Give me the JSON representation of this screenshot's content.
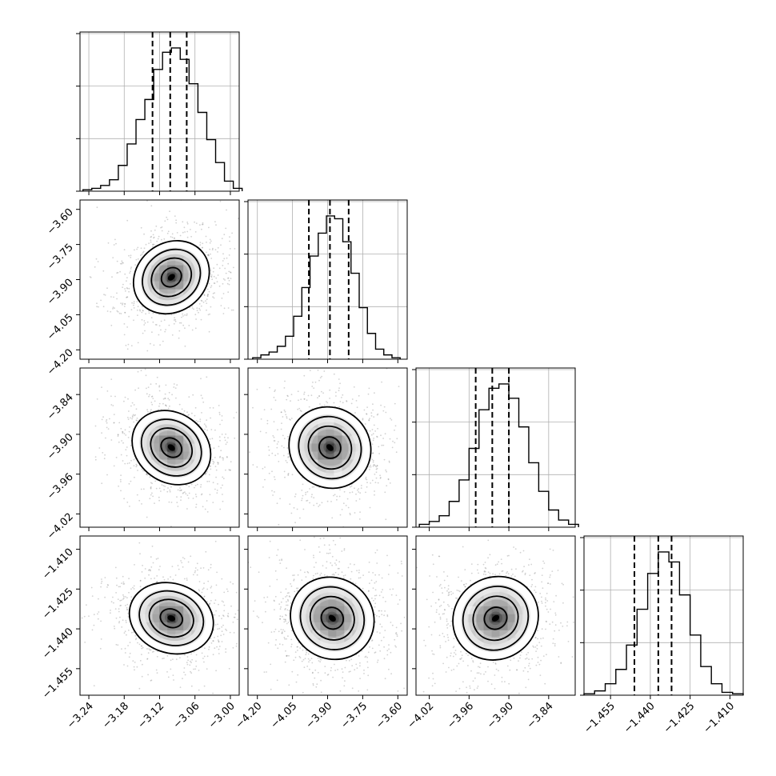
{
  "chart_data": {
    "type": "corner",
    "parameters": [
      {
        "ticks": [
          -3.24,
          -3.18,
          -3.12,
          -3.06,
          -3.0
        ],
        "tick_labels": [
          "−3.24",
          "−3.18",
          "−3.12",
          "−3.06",
          "−3.00"
        ],
        "range": [
          -3.255,
          -2.985
        ],
        "quantiles": [
          -3.132,
          -3.102,
          -3.074
        ],
        "hist_bins": [
          -3.25,
          -3.235,
          -3.22,
          -3.205,
          -3.19,
          -3.175,
          -3.16,
          -3.145,
          -3.13,
          -3.115,
          -3.1,
          -3.085,
          -3.07,
          -3.055,
          -3.04,
          -3.025,
          -3.01,
          -2.995
        ],
        "hist_counts": [
          0.01,
          0.02,
          0.04,
          0.08,
          0.18,
          0.33,
          0.5,
          0.64,
          0.85,
          0.97,
          1.0,
          0.92,
          0.75,
          0.55,
          0.36,
          0.2,
          0.07,
          0.02
        ]
      },
      {
        "ticks": [
          -4.2,
          -4.05,
          -3.9,
          -3.75,
          -3.6
        ],
        "tick_labels": [
          "−4.20",
          "−4.05",
          "−3.90",
          "−3.75",
          "−3.60"
        ],
        "range": [
          -4.24,
          -3.56
        ],
        "quantiles": [
          -3.98,
          -3.89,
          -3.81
        ],
        "hist_bins": [
          -4.22,
          -4.185,
          -4.15,
          -4.115,
          -4.08,
          -4.045,
          -4.01,
          -3.975,
          -3.94,
          -3.905,
          -3.87,
          -3.835,
          -3.8,
          -3.765,
          -3.73,
          -3.695,
          -3.66,
          -3.625
        ],
        "hist_counts": [
          0.01,
          0.03,
          0.05,
          0.09,
          0.16,
          0.3,
          0.5,
          0.72,
          0.88,
          1.0,
          0.98,
          0.82,
          0.6,
          0.36,
          0.18,
          0.07,
          0.03,
          0.01
        ]
      },
      {
        "ticks": [
          -4.02,
          -3.96,
          -3.9,
          -3.84
        ],
        "tick_labels": [
          "−4.02",
          "−3.96",
          "−3.90",
          "−3.84"
        ],
        "range": [
          -4.04,
          -3.8
        ],
        "quantiles": [
          -3.95,
          -3.925,
          -3.9
        ],
        "hist_bins": [
          -4.035,
          -4.02,
          -4.005,
          -3.99,
          -3.975,
          -3.96,
          -3.945,
          -3.93,
          -3.915,
          -3.9,
          -3.885,
          -3.87,
          -3.855,
          -3.84,
          -3.825,
          -3.81
        ],
        "hist_counts": [
          0.02,
          0.04,
          0.08,
          0.18,
          0.33,
          0.55,
          0.82,
          0.97,
          1.0,
          0.9,
          0.7,
          0.45,
          0.25,
          0.12,
          0.05,
          0.02
        ]
      },
      {
        "ticks": [
          -1.455,
          -1.44,
          -1.425,
          -1.41
        ],
        "tick_labels": [
          "−1.455",
          "−1.440",
          "−1.425",
          "−1.410"
        ],
        "range": [
          -1.465,
          -1.405
        ],
        "quantiles": [
          -1.446,
          -1.437,
          -1.432
        ],
        "hist_bins": [
          -1.465,
          -1.461,
          -1.457,
          -1.453,
          -1.449,
          -1.445,
          -1.441,
          -1.437,
          -1.433,
          -1.429,
          -1.425,
          -1.421,
          -1.417,
          -1.413,
          -1.409
        ],
        "hist_counts": [
          0.01,
          0.03,
          0.08,
          0.18,
          0.35,
          0.6,
          0.85,
          1.0,
          0.93,
          0.7,
          0.42,
          0.2,
          0.08,
          0.02,
          0.01
        ]
      }
    ],
    "pairs": [
      {
        "row": 1,
        "col": 0,
        "center": [
          -3.1,
          -3.89
        ],
        "spread": [
          0.03,
          0.09
        ],
        "angle": -38,
        "peak_offset": [
          0.0,
          0.02
        ]
      },
      {
        "row": 2,
        "col": 0,
        "center": [
          -3.1,
          -3.92
        ],
        "spread": [
          0.03,
          0.033
        ],
        "angle": 36,
        "peak_offset": [
          0.0,
          0.0
        ]
      },
      {
        "row": 2,
        "col": 1,
        "center": [
          -3.89,
          -3.92
        ],
        "spread": [
          0.09,
          0.033
        ],
        "angle": 42,
        "peak_offset": [
          0.0,
          0.0
        ]
      },
      {
        "row": 3,
        "col": 0,
        "center": [
          -3.1,
          -1.436
        ],
        "spread": [
          0.03,
          0.0085
        ],
        "angle": 20,
        "peak_offset": [
          0.0,
          0.0
        ]
      },
      {
        "row": 3,
        "col": 1,
        "center": [
          -3.88,
          -1.436
        ],
        "spread": [
          0.09,
          0.0085
        ],
        "angle": 38,
        "peak_offset": [
          0.0,
          0.0
        ]
      },
      {
        "row": 3,
        "col": 2,
        "center": [
          -3.92,
          -1.436
        ],
        "spread": [
          0.033,
          0.0085
        ],
        "angle": -35,
        "peak_offset": [
          0.0,
          0.0
        ]
      }
    ],
    "grid": true,
    "colors": {
      "line": "#000000",
      "grid": "#b0b0b0",
      "scatter": "#7f7f7f",
      "density_dark": "#222222",
      "density_light": "#f2f2f2"
    }
  }
}
